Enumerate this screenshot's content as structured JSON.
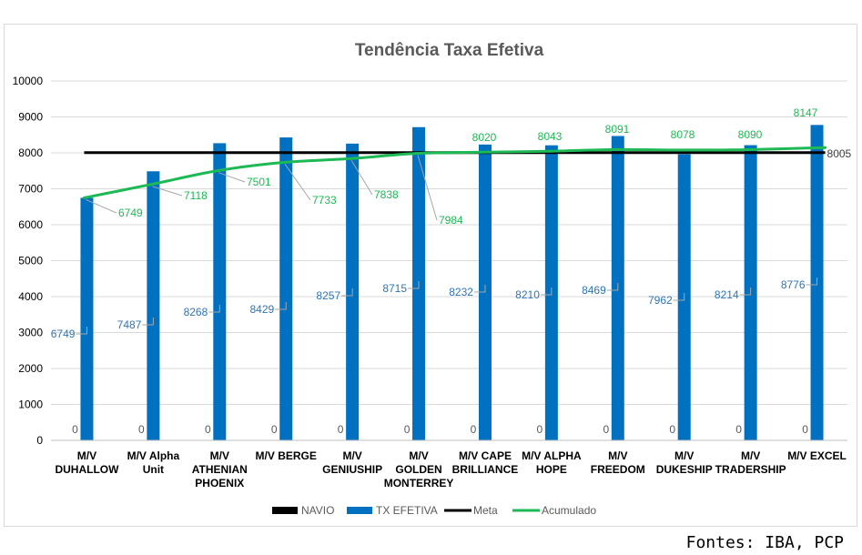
{
  "chart_data": {
    "type": "bar",
    "title": "Tendência Taxa Efetiva",
    "categories": [
      [
        "M/V",
        "DUHALLOW"
      ],
      [
        "M/V Alpha",
        "Unit"
      ],
      [
        "M/V",
        "ATHENIAN",
        "PHOENIX"
      ],
      [
        "M/V BERGE"
      ],
      [
        "M/V",
        "GENIUSHIP"
      ],
      [
        "M/V",
        "GOLDEN",
        "MONTERREY"
      ],
      [
        "M/V CAPE",
        "BRILLIANCE"
      ],
      [
        "M/V ALPHA",
        "HOPE"
      ],
      [
        "M/V",
        "FREEDOM"
      ],
      [
        "M/V",
        "DUKESHIP"
      ],
      [
        "M/V",
        "TRADERSHIP"
      ],
      [
        "M/V EXCEL"
      ]
    ],
    "ylim": [
      0,
      10000
    ],
    "yticks": [
      "0",
      "1000",
      "2000",
      "3000",
      "4000",
      "5000",
      "6000",
      "7000",
      "8000",
      "9000",
      "10000"
    ],
    "series": [
      {
        "name": "NAVIO",
        "type": "bar",
        "color": "#000000",
        "values": [
          0,
          0,
          0,
          0,
          0,
          0,
          0,
          0,
          0,
          0,
          0,
          0
        ],
        "labels": [
          "0",
          "0",
          "0",
          "0",
          "0",
          "0",
          "0",
          "0",
          "0",
          "0",
          "0",
          "0"
        ]
      },
      {
        "name": "TX EFETIVA",
        "type": "bar",
        "color": "#0070c0",
        "values": [
          6749,
          7487,
          8268,
          8429,
          8257,
          8715,
          8232,
          8210,
          8469,
          7962,
          8214,
          8776
        ],
        "labels": [
          "6749",
          "7487",
          "8268",
          "8429",
          "8257",
          "8715",
          "8232",
          "8210",
          "8469",
          "7962",
          "8214",
          "8776"
        ]
      },
      {
        "name": "Meta",
        "type": "line",
        "color": "#000000",
        "values": [
          8005,
          8005,
          8005,
          8005,
          8005,
          8005,
          8005,
          8005,
          8005,
          8005,
          8005,
          8005
        ],
        "end_label": "8005"
      },
      {
        "name": "Acumulado",
        "type": "line",
        "color": "#1db954",
        "values": [
          6749,
          7118,
          7501,
          7733,
          7838,
          7984,
          8020,
          8043,
          8091,
          8078,
          8090,
          8147
        ],
        "labels": [
          "6749",
          "7118",
          "7501",
          "7733",
          "7838",
          "7984",
          "8020",
          "8043",
          "8091",
          "8078",
          "8090",
          "8147"
        ]
      }
    ],
    "legend_position": "bottom",
    "grid": true
  },
  "source_note": "Fontes: IBA, PCP"
}
